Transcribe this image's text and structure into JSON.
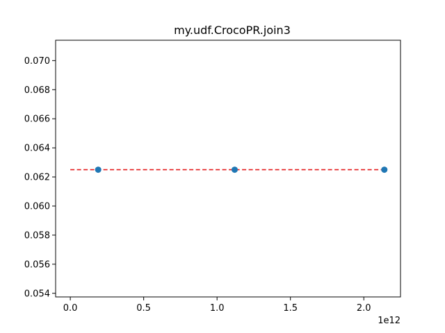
{
  "chart_data": {
    "type": "scatter",
    "title": "my.udf.CrocoPR.join3",
    "xlabel": "",
    "ylabel": "",
    "x_offset_label": "1e12",
    "xlim": [
      -0.1,
      2.25
    ],
    "ylim": [
      0.05375,
      0.0714
    ],
    "x_ticks": [
      0.0,
      0.5,
      1.0,
      1.5,
      2.0
    ],
    "x_tick_labels": [
      "0.0",
      "0.5",
      "1.0",
      "1.5",
      "2.0"
    ],
    "y_ticks": [
      0.054,
      0.056,
      0.058,
      0.06,
      0.062,
      0.064,
      0.066,
      0.068,
      0.07
    ],
    "y_tick_labels": [
      "0.054",
      "0.056",
      "0.058",
      "0.060",
      "0.062",
      "0.064",
      "0.066",
      "0.068",
      "0.070"
    ],
    "grid": false,
    "series": [
      {
        "kind": "scatter",
        "color": "#1f77b4",
        "x": [
          0.19,
          1.12,
          2.14
        ],
        "y": [
          0.0625,
          0.0625,
          0.0625
        ]
      },
      {
        "kind": "line",
        "style": "dashed",
        "color": "#e41a1c",
        "x": [
          0.0,
          2.14
        ],
        "y": [
          0.0625,
          0.0625
        ]
      }
    ]
  }
}
